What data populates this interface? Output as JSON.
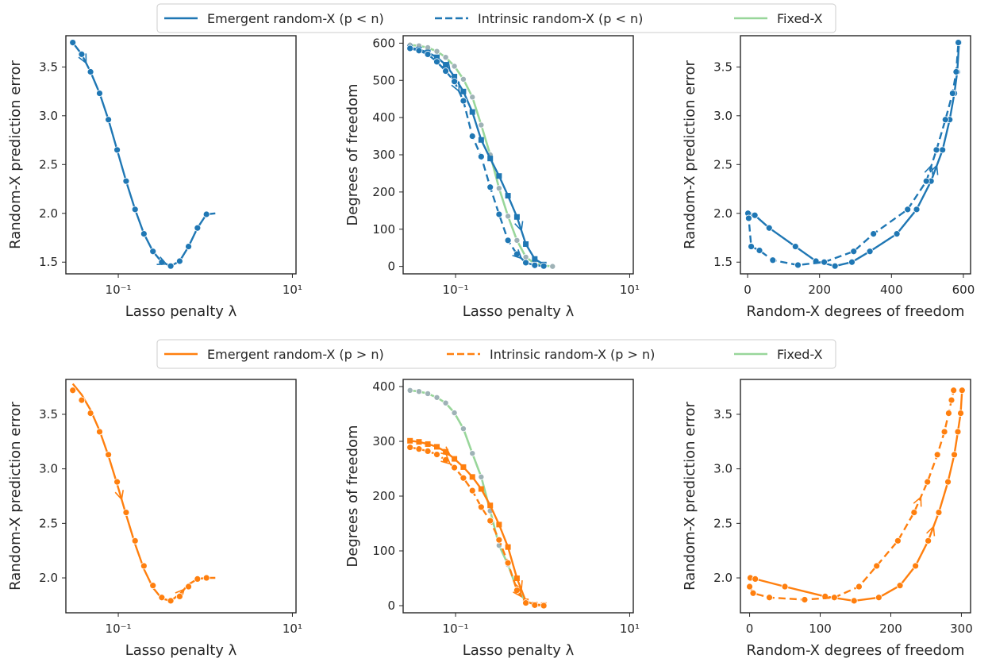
{
  "colors": {
    "blue": "#1f77b4",
    "orange": "#ff7f0e",
    "green": "#98d69a",
    "axis": "#262626"
  },
  "legends": [
    {
      "items": [
        {
          "label": "Emergent random-X (p < n)",
          "style": "solid",
          "color": "#1f77b4"
        },
        {
          "label": "Intrinsic random-X (p < n)",
          "style": "dashed",
          "color": "#1f77b4"
        },
        {
          "label": "Fixed-X",
          "style": "solid",
          "color": "#98d69a"
        }
      ]
    },
    {
      "items": [
        {
          "label": "Emergent random-X (p > n)",
          "style": "solid",
          "color": "#ff7f0e"
        },
        {
          "label": "Intrinsic random-X (p > n)",
          "style": "dashed",
          "color": "#ff7f0e"
        },
        {
          "label": "Fixed-X",
          "style": "solid",
          "color": "#98d69a"
        }
      ]
    }
  ],
  "chart_data": [
    {
      "type": "line",
      "row": 0,
      "col": 0,
      "xlabel": "Lasso penalty λ",
      "ylabel": "Random-X prediction error",
      "xscale": "log",
      "xlim": [
        0.025,
        11
      ],
      "ylim": [
        1.38,
        3.82
      ],
      "xticks": [
        0.1,
        10
      ],
      "xticklabels": [
        "10⁻¹",
        "10¹"
      ],
      "yticks": [
        1.5,
        2.0,
        2.5,
        3.0,
        3.5
      ],
      "yticklabels": [
        "1.5",
        "2.0",
        "2.5",
        "3.0",
        "3.5"
      ],
      "series": [
        {
          "name": "Emergent random-X (p < n)",
          "style": "solid",
          "color": "#1f77b4",
          "marker": "circle",
          "x": [
            0.03,
            0.038,
            0.048,
            0.061,
            0.077,
            0.097,
            0.123,
            0.156,
            0.197,
            0.25,
            0.316,
            0.4,
            0.507,
            0.641,
            0.812,
            1.03
          ],
          "y": [
            3.75,
            3.63,
            3.45,
            3.23,
            2.96,
            2.65,
            2.33,
            2.04,
            1.79,
            1.61,
            1.5,
            1.46,
            1.51,
            1.66,
            1.85,
            1.99
          ],
          "line_x": [
            0.03,
            0.038,
            0.048,
            0.061,
            0.077,
            0.097,
            0.123,
            0.156,
            0.197,
            0.25,
            0.316,
            0.4,
            0.507,
            0.641,
            0.812,
            1.03,
            1.3
          ],
          "line_y": [
            3.75,
            3.63,
            3.45,
            3.23,
            2.96,
            2.65,
            2.33,
            2.04,
            1.79,
            1.61,
            1.5,
            1.46,
            1.51,
            1.66,
            1.85,
            1.99,
            2.0
          ],
          "arrows": [
            1,
            10
          ]
        }
      ]
    },
    {
      "type": "line",
      "row": 0,
      "col": 1,
      "xlabel": "Lasso penalty λ",
      "ylabel": "Degrees of freedom",
      "xscale": "log",
      "xlim": [
        0.025,
        11
      ],
      "ylim": [
        -20,
        620
      ],
      "xticks": [
        0.1,
        10
      ],
      "xticklabels": [
        "10⁻¹",
        "10¹"
      ],
      "yticks": [
        0,
        100,
        200,
        300,
        400,
        500,
        600
      ],
      "yticklabels": [
        "0",
        "100",
        "200",
        "300",
        "400",
        "500",
        "600"
      ],
      "series": [
        {
          "name": "Fixed-X",
          "style": "solid",
          "color": "#98d69a",
          "marker": "circle-grey",
          "x": [
            0.03,
            0.038,
            0.048,
            0.061,
            0.077,
            0.097,
            0.123,
            0.156,
            0.197,
            0.25,
            0.316,
            0.4,
            0.507,
            0.641,
            0.812,
            1.03,
            1.3
          ],
          "y": [
            595,
            593,
            588,
            578,
            562,
            538,
            503,
            455,
            380,
            300,
            210,
            135,
            70,
            25,
            8,
            2,
            0
          ]
        },
        {
          "name": "Emergent random-X (p < n)",
          "style": "solid",
          "color": "#1f77b4",
          "marker": "square",
          "x": [
            0.03,
            0.038,
            0.048,
            0.061,
            0.077,
            0.097,
            0.123,
            0.156,
            0.197,
            0.25,
            0.316,
            0.4,
            0.507,
            0.641,
            0.812,
            1.03
          ],
          "y": [
            588,
            583,
            575,
            562,
            542,
            510,
            470,
            415,
            340,
            290,
            243,
            190,
            133,
            60,
            20,
            5
          ],
          "arrows": [
            4,
            12
          ]
        },
        {
          "name": "Intrinsic random-X (p < n)",
          "style": "dashed",
          "color": "#1f77b4",
          "marker": "circle",
          "x": [
            0.03,
            0.038,
            0.048,
            0.061,
            0.077,
            0.097,
            0.123,
            0.156,
            0.197,
            0.25,
            0.316,
            0.4,
            0.507,
            0.641,
            0.812,
            1.03
          ],
          "y": [
            586,
            580,
            570,
            550,
            525,
            497,
            445,
            350,
            295,
            213,
            140,
            70,
            33,
            10,
            3,
            1
          ],
          "arrows": [
            5,
            12
          ]
        }
      ]
    },
    {
      "type": "line",
      "row": 0,
      "col": 2,
      "xlabel": "Random-X degrees of freedom",
      "ylabel": "Random-X prediction error",
      "xlim": [
        -20,
        620
      ],
      "ylim": [
        1.38,
        3.82
      ],
      "xticks": [
        0,
        200,
        400,
        600
      ],
      "xticklabels": [
        "0",
        "200",
        "400",
        "600"
      ],
      "yticks": [
        1.5,
        2.0,
        2.5,
        3.0,
        3.5
      ],
      "yticklabels": [
        "1.5",
        "2.0",
        "2.5",
        "3.0",
        "3.5"
      ],
      "series": [
        {
          "name": "Emergent random-X (p < n)",
          "style": "solid",
          "color": "#1f77b4",
          "marker": "circle",
          "x": [
            5,
            20,
            60,
            133,
            190,
            243,
            290,
            340,
            415,
            470,
            510,
            542,
            562,
            575,
            583,
            588
          ],
          "y": [
            1.99,
            1.98,
            1.85,
            1.66,
            1.51,
            1.46,
            1.5,
            1.61,
            1.79,
            2.04,
            2.33,
            2.65,
            2.96,
            3.23,
            3.45,
            3.75
          ],
          "arrows": [
            10
          ]
        },
        {
          "name": "Intrinsic random-X (p < n)",
          "style": "dashed",
          "color": "#1f77b4",
          "marker": "circle",
          "x": [
            1,
            3,
            10,
            33,
            70,
            140,
            213,
            295,
            350,
            445,
            497,
            525,
            550,
            570,
            580,
            586
          ],
          "y": [
            2.0,
            1.95,
            1.66,
            1.62,
            1.52,
            1.47,
            1.5,
            1.61,
            1.79,
            2.04,
            2.33,
            2.65,
            2.96,
            3.23,
            3.45,
            3.75
          ],
          "arrows": [
            10
          ]
        }
      ]
    },
    {
      "type": "line",
      "row": 1,
      "col": 0,
      "xlabel": "Lasso penalty λ",
      "ylabel": "Random-X prediction error",
      "xscale": "log",
      "xlim": [
        0.025,
        11
      ],
      "ylim": [
        1.68,
        3.82
      ],
      "xticks": [
        0.1,
        10
      ],
      "xticklabels": [
        "10⁻¹",
        "10¹"
      ],
      "yticks": [
        2.0,
        2.5,
        3.0,
        3.5
      ],
      "yticklabels": [
        "2.0",
        "2.5",
        "3.0",
        "3.5"
      ],
      "series": [
        {
          "name": "Emergent random-X (p > n)",
          "style": "solid",
          "color": "#ff7f0e",
          "marker": "none",
          "x": [
            0.03,
            0.038,
            0.048,
            0.061,
            0.077,
            0.097,
            0.123,
            0.156,
            0.197,
            0.25,
            0.316,
            0.4,
            0.507,
            0.641,
            0.812,
            1.03,
            1.3
          ],
          "y": [
            3.78,
            3.68,
            3.54,
            3.35,
            3.12,
            2.86,
            2.58,
            2.31,
            2.08,
            1.91,
            1.81,
            1.79,
            1.85,
            1.94,
            1.99,
            2.0,
            2.0
          ],
          "arrows": [
            5,
            12
          ]
        },
        {
          "name": "Intrinsic random-X (p > n)",
          "style": "dashed",
          "color": "#ff7f0e",
          "marker": "circle",
          "line": false,
          "x": [
            0.03,
            0.038,
            0.048,
            0.061,
            0.077,
            0.097,
            0.123,
            0.156,
            0.197,
            0.25,
            0.316,
            0.4,
            0.507,
            0.641,
            0.812,
            1.03
          ],
          "y": [
            3.72,
            3.63,
            3.51,
            3.34,
            3.13,
            2.88,
            2.6,
            2.34,
            2.11,
            1.93,
            1.82,
            1.79,
            1.83,
            1.92,
            1.99,
            2.0
          ]
        }
      ]
    },
    {
      "type": "line",
      "row": 1,
      "col": 1,
      "xlabel": "Lasso penalty λ",
      "ylabel": "Degrees of freedom",
      "xscale": "log",
      "xlim": [
        0.025,
        11
      ],
      "ylim": [
        -13,
        413
      ],
      "xticks": [
        0.1,
        10
      ],
      "xticklabels": [
        "10⁻¹",
        "10¹"
      ],
      "yticks": [
        0,
        100,
        200,
        300,
        400
      ],
      "yticklabels": [
        "0",
        "100",
        "200",
        "300",
        "400"
      ],
      "series": [
        {
          "name": "Fixed-X",
          "style": "solid",
          "color": "#98d69a",
          "marker": "circle-grey",
          "x": [
            0.03,
            0.038,
            0.048,
            0.061,
            0.077,
            0.097,
            0.123,
            0.156,
            0.197,
            0.25,
            0.316,
            0.4,
            0.507,
            0.641,
            0.812,
            1.03
          ],
          "y": [
            393,
            391,
            387,
            380,
            370,
            352,
            323,
            278,
            235,
            173,
            110,
            75,
            30,
            8,
            2,
            0
          ]
        },
        {
          "name": "Emergent random-X (p > n)",
          "style": "solid",
          "color": "#ff7f0e",
          "marker": "square",
          "x": [
            0.03,
            0.038,
            0.048,
            0.061,
            0.077,
            0.097,
            0.123,
            0.156,
            0.197,
            0.25,
            0.316,
            0.4,
            0.507,
            0.641,
            0.812,
            1.03
          ],
          "y": [
            301,
            299,
            295,
            290,
            281,
            268,
            253,
            235,
            213,
            183,
            148,
            107,
            50,
            8,
            2,
            1
          ],
          "arrows": [
            4,
            12
          ]
        },
        {
          "name": "Intrinsic random-X (p > n)",
          "style": "dashed",
          "color": "#ff7f0e",
          "marker": "circle",
          "x": [
            0.03,
            0.038,
            0.048,
            0.061,
            0.077,
            0.097,
            0.123,
            0.156,
            0.197,
            0.25,
            0.316,
            0.4,
            0.507,
            0.641,
            0.812,
            1.03
          ],
          "y": [
            289,
            286,
            282,
            276,
            266,
            252,
            233,
            210,
            180,
            155,
            120,
            78,
            28,
            5,
            1,
            0
          ],
          "arrows": [
            4,
            12
          ]
        }
      ]
    },
    {
      "type": "line",
      "row": 1,
      "col": 2,
      "xlabel": "Random-X degrees of freedom",
      "ylabel": "Random-X prediction error",
      "xlim": [
        -13,
        313
      ],
      "ylim": [
        1.68,
        3.82
      ],
      "xticks": [
        0,
        100,
        200,
        300
      ],
      "xticklabels": [
        "0",
        "100",
        "200",
        "300"
      ],
      "yticks": [
        2.0,
        2.5,
        3.0,
        3.5
      ],
      "yticklabels": [
        "2.0",
        "2.5",
        "3.0",
        "3.5"
      ],
      "series": [
        {
          "name": "Emergent random-X (p > n)",
          "style": "solid",
          "color": "#ff7f0e",
          "marker": "circle",
          "x": [
            1,
            8,
            50,
            107,
            148,
            183,
            213,
            235,
            253,
            268,
            281,
            290,
            295,
            299,
            301
          ],
          "y": [
            2.0,
            1.99,
            1.92,
            1.83,
            1.79,
            1.82,
            1.93,
            2.11,
            2.34,
            2.6,
            2.88,
            3.13,
            3.34,
            3.51,
            3.72
          ],
          "arrows": [
            8
          ]
        },
        {
          "name": "Intrinsic random-X (p > n)",
          "style": "dashed",
          "color": "#ff7f0e",
          "marker": "circle",
          "x": [
            0,
            5,
            28,
            78,
            120,
            155,
            180,
            210,
            233,
            252,
            266,
            276,
            282,
            286,
            289
          ],
          "y": [
            1.92,
            1.86,
            1.82,
            1.8,
            1.82,
            1.92,
            2.11,
            2.34,
            2.6,
            2.88,
            3.13,
            3.34,
            3.51,
            3.63,
            3.72
          ],
          "arrows": [
            8
          ]
        }
      ]
    }
  ]
}
